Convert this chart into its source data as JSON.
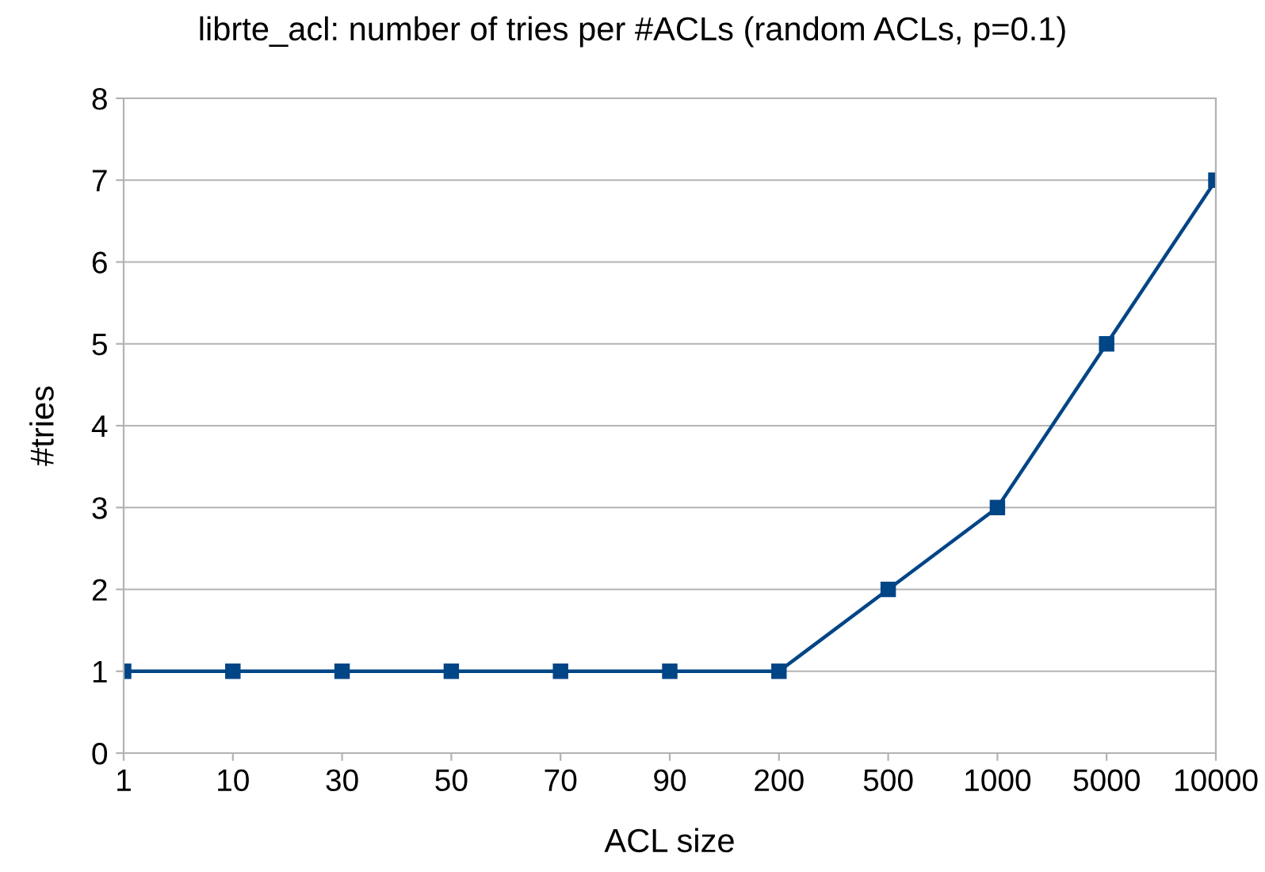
{
  "chart_data": {
    "type": "line",
    "title": "librte_acl: number of tries per #ACLs (random ACLs, p=0.1)",
    "xlabel": "ACL size",
    "ylabel": "#tries",
    "categories": [
      "1",
      "10",
      "30",
      "50",
      "70",
      "90",
      "200",
      "500",
      "1000",
      "5000",
      "10000"
    ],
    "series": [
      {
        "color": "#004586",
        "values": [
          1,
          1,
          1,
          1,
          1,
          1,
          1,
          2,
          3,
          5,
          7
        ]
      }
    ],
    "ylim": [
      0,
      8
    ],
    "yticks": [
      0,
      1,
      2,
      3,
      4,
      5,
      6,
      7,
      8
    ],
    "grid": "y",
    "marker": "square",
    "line_style": "solid"
  }
}
